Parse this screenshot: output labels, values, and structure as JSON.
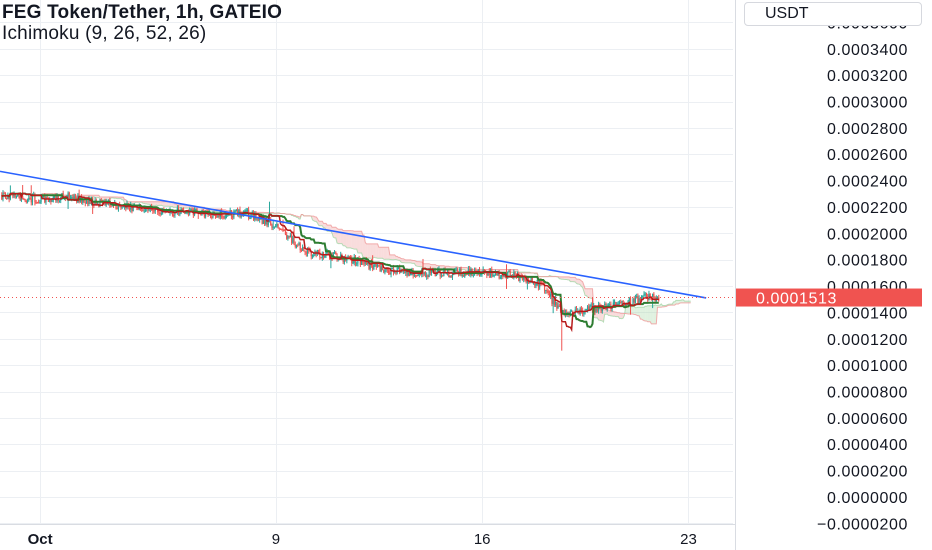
{
  "header": {
    "title": "FEG Token/Tether, 1h, GATEIO",
    "indicator": "Ichimoku (9, 26, 52, 26)"
  },
  "price_axis": {
    "currency": "USDT",
    "current_price_label": "0.0001513"
  },
  "colors": {
    "trendline": "#2962ff",
    "price_tag_bg": "#f05350",
    "grid": "#eceff3",
    "up_candle": "#26a69a",
    "down_candle": "#ef5350",
    "conversion_line": "#b71c1c",
    "base_line": "#2e7d32",
    "cloud_bull": "#a5d6a7",
    "cloud_bear": "#ef9a9a"
  },
  "chart_data": {
    "type": "candlestick",
    "symbol": "FEG Token/Tether",
    "interval": "1h",
    "exchange": "GATEIO",
    "indicator": "Ichimoku (9, 26, 52, 26)",
    "y_tick_labels": [
      "0.0003600",
      "0.0003400",
      "0.0003200",
      "0.0003000",
      "0.0002800",
      "0.0002600",
      "0.0002400",
      "0.0002200",
      "0.0002000",
      "0.0001800",
      "0.0001600",
      "0.0001400",
      "0.0001200",
      "0.0001000",
      "0.0000800",
      "0.0000600",
      "0.0000400",
      "0.0000200",
      "0.0000000",
      "−0.0000200"
    ],
    "y_tick_values": [
      0.00036,
      0.00034,
      0.00032,
      0.0003,
      0.00028,
      0.00026,
      0.00024,
      0.00022,
      0.0002,
      0.00018,
      0.00016,
      0.00014,
      0.00012,
      0.0001,
      8e-05,
      6e-05,
      4e-05,
      2e-05,
      0.0,
      -2e-05
    ],
    "ylim": [
      -2.05e-05,
      0.000377
    ],
    "x_ticks": [
      {
        "label": "Oct",
        "day": 1
      },
      {
        "label": "9",
        "day": 9
      },
      {
        "label": "16",
        "day": 16
      },
      {
        "label": "23",
        "day": 23
      }
    ],
    "x_range_days": [
      -0.36,
      24.51
    ],
    "current_price": 0.0001513,
    "trendline": {
      "start": {
        "day": -0.36,
        "price": 0.000247
      },
      "end": {
        "day": 23.6,
        "price": 0.000151
      }
    },
    "price_path": [
      {
        "day": -0.3,
        "price": 0.000229
      },
      {
        "day": 1.0,
        "price": 0.000226
      },
      {
        "day": 2.0,
        "price": 0.000228
      },
      {
        "day": 3.0,
        "price": 0.000223
      },
      {
        "day": 4.0,
        "price": 0.00022
      },
      {
        "day": 5.0,
        "price": 0.000218
      },
      {
        "day": 6.0,
        "price": 0.000216
      },
      {
        "day": 7.0,
        "price": 0.000214
      },
      {
        "day": 8.0,
        "price": 0.000215
      },
      {
        "day": 9.0,
        "price": 0.000206
      },
      {
        "day": 10.0,
        "price": 0.000186
      },
      {
        "day": 11.0,
        "price": 0.000183
      },
      {
        "day": 12.0,
        "price": 0.000177
      },
      {
        "day": 13.0,
        "price": 0.000171
      },
      {
        "day": 14.0,
        "price": 0.00017
      },
      {
        "day": 15.0,
        "price": 0.00017
      },
      {
        "day": 16.0,
        "price": 0.00017
      },
      {
        "day": 17.0,
        "price": 0.000168
      },
      {
        "day": 18.0,
        "price": 0.000161
      },
      {
        "day": 18.7,
        "price": 0.000139
      },
      {
        "day": 19.0,
        "price": 0.00014
      },
      {
        "day": 20.0,
        "price": 0.000144
      },
      {
        "day": 20.5,
        "price": 0.000145
      },
      {
        "day": 21.5,
        "price": 0.000151
      },
      {
        "day": 22.0,
        "price": 0.0001513
      }
    ],
    "extremes": {
      "low": {
        "day": 18.7,
        "price": 0.000111
      },
      "high_spike": {
        "day": 8.8,
        "price": 0.000224
      }
    }
  }
}
